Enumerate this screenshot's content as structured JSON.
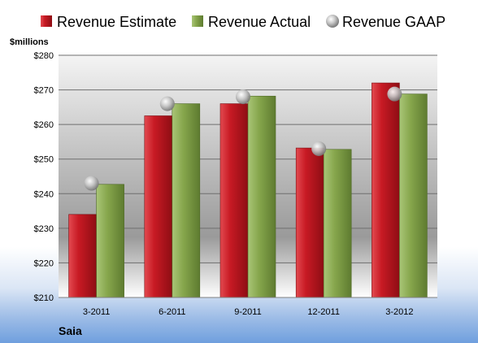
{
  "company": "Saia",
  "colors": {
    "estimate": "#d0202a",
    "actual": "#8fae55",
    "gaap": "#b4b4b4"
  },
  "chart_data": {
    "type": "bar",
    "ylabel": "$millions",
    "categories": [
      "3-2011",
      "6-2011",
      "9-2011",
      "12-2011",
      "3-2012"
    ],
    "series": [
      {
        "name": "Revenue Estimate",
        "kind": "bar",
        "values": [
          234,
          262.5,
          266,
          253.2,
          272
        ]
      },
      {
        "name": "Revenue Actual",
        "kind": "bar",
        "values": [
          242.7,
          266,
          268.2,
          252.8,
          268.8
        ]
      },
      {
        "name": "Revenue GAAP",
        "kind": "marker",
        "values": [
          243,
          266,
          268,
          253,
          268.8
        ]
      }
    ],
    "ylim": [
      210,
      280
    ],
    "yticks": [
      "$210",
      "$220",
      "$230",
      "$240",
      "$250",
      "$260",
      "$270",
      "$280"
    ],
    "grid": true,
    "legend_position": "top"
  }
}
